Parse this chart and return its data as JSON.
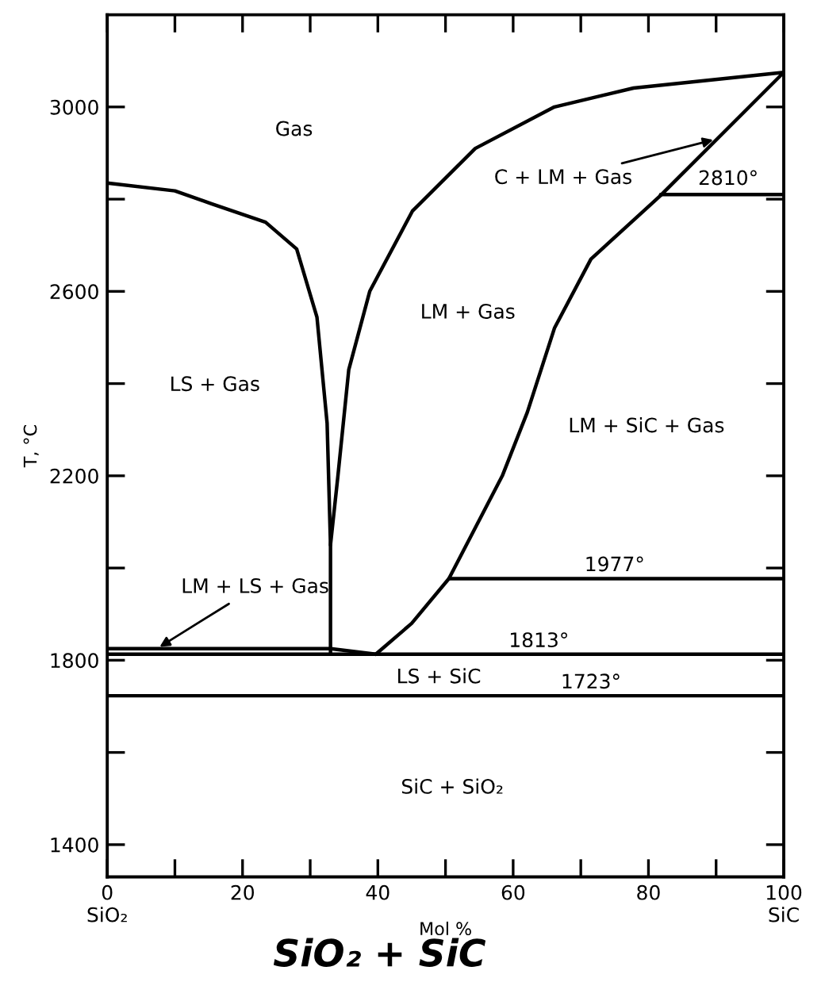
{
  "chart_data": {
    "type": "line",
    "title": "SiO₂ + SiC",
    "xlabel": "Mol %",
    "ylabel": "T, °C",
    "xlim": [
      0,
      100
    ],
    "ylim": [
      1330,
      3200
    ],
    "xticks": [
      {
        "value": 0,
        "label": "0\nSiO₂"
      },
      {
        "value": 10,
        "label": null
      },
      20,
      {
        "value": 30,
        "label": null
      },
      40,
      {
        "value": 50,
        "label": null
      },
      60,
      {
        "value": 70,
        "label": null
      },
      80,
      {
        "value": 90,
        "label": null
      },
      {
        "value": 100,
        "label": "100\nSiC"
      }
    ],
    "yticks": [
      1400,
      {
        "value": 1600,
        "label": null
      },
      1800,
      {
        "value": 2000,
        "label": null
      },
      2200,
      {
        "value": 2400,
        "label": null
      },
      2600,
      {
        "value": 2800,
        "label": null
      },
      3000
    ],
    "grid": false,
    "legend": false,
    "marker": "none",
    "line_style": "solid",
    "series": [
      {
        "color": "#000000",
        "x": [
          0,
          10,
          15.4,
          23.4,
          28,
          31,
          32.5,
          33,
          33
        ],
        "values": [
          2835,
          2818,
          2790,
          2750,
          2692,
          2544,
          2314,
          2050,
          1813
        ]
      },
      {
        "color": "#000000",
        "x": [
          33,
          34.1,
          35.7,
          38.8,
          45.1,
          54.4,
          66.1,
          77.8,
          100
        ],
        "values": [
          2050,
          2200,
          2430,
          2600,
          2774,
          2910,
          3000,
          3041,
          3075
        ]
      },
      {
        "color": "#000000",
        "x": [
          39.7,
          45,
          50.5,
          58.4,
          62.1,
          66.1,
          71.5,
          81.8,
          100
        ],
        "values": [
          1813,
          1880,
          1977,
          2200,
          2338,
          2520,
          2670,
          2808,
          3075
        ]
      },
      {
        "color": "#000000",
        "x": [
          81.8,
          100
        ],
        "values": [
          2810,
          2810
        ]
      },
      {
        "color": "#000000",
        "x": [
          50.5,
          100
        ],
        "values": [
          1977,
          1977
        ]
      },
      {
        "color": "#000000",
        "x": [
          0,
          33,
          39.7
        ],
        "values": [
          1825,
          1825,
          1813
        ]
      }
    ],
    "ref_lines": [
      {
        "axis": "y",
        "value": 1813,
        "color": "#000000"
      },
      {
        "axis": "y",
        "value": 1723,
        "color": "#000000"
      }
    ],
    "annotations": [
      "Gas",
      {
        "text": "C + LM + Gas",
        "x": 90.2,
        "y": 2931
      },
      "2810°",
      "LM + Gas",
      "LS + Gas",
      "LM + SiC + Gas",
      "1977°",
      {
        "text": "LM + LS + Gas",
        "x": 7.2,
        "y": 1824
      },
      "1813°",
      "LS + SiC",
      "1723°",
      "SiC + SiO₂"
    ]
  }
}
